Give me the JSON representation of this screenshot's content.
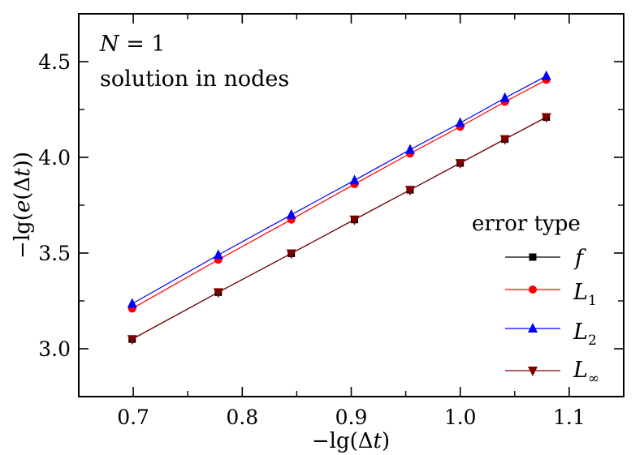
{
  "chart_data": {
    "type": "line",
    "xlabel": "−lg(Δt)",
    "ylabel": "−lg(e(Δt))",
    "xlim": [
      0.65,
      1.15
    ],
    "ylim": [
      2.75,
      4.75
    ],
    "xticks": [
      "0.7",
      "0.8",
      "0.9",
      "1.0",
      "1.1"
    ],
    "yticks": [
      "3.0",
      "3.5",
      "4.0",
      "4.5"
    ],
    "annotations": [
      "N = 1",
      "solution in nodes"
    ],
    "legend_title": "error type",
    "legend_position": "lower-right",
    "grid": false,
    "x": [
      0.699,
      0.778,
      0.845,
      0.903,
      0.954,
      1.0,
      1.041,
      1.079
    ],
    "series": [
      {
        "name": "f",
        "marker": "square",
        "color": "#000000",
        "values": [
          3.05,
          3.295,
          3.498,
          3.675,
          3.83,
          3.97,
          4.095,
          4.21
        ]
      },
      {
        "name": "L1",
        "marker": "circle",
        "color": "#ff0000",
        "values": [
          3.21,
          3.465,
          3.675,
          3.86,
          4.02,
          4.16,
          4.29,
          4.405
        ]
      },
      {
        "name": "L2",
        "marker": "triangle-up",
        "color": "#0000ff",
        "values": [
          3.235,
          3.49,
          3.7,
          3.88,
          4.04,
          4.18,
          4.31,
          4.425
        ]
      },
      {
        "name": "L∞",
        "marker": "triangle-down",
        "color": "#800000",
        "values": [
          3.05,
          3.295,
          3.498,
          3.675,
          3.83,
          3.97,
          4.095,
          4.21
        ]
      }
    ]
  },
  "legend_labels": {
    "f": {
      "main": "f",
      "sub": ""
    },
    "L1": {
      "main": "L",
      "sub": "1"
    },
    "L2": {
      "main": "L",
      "sub": "2"
    },
    "Linf": {
      "main": "L",
      "sub": "∞"
    }
  }
}
